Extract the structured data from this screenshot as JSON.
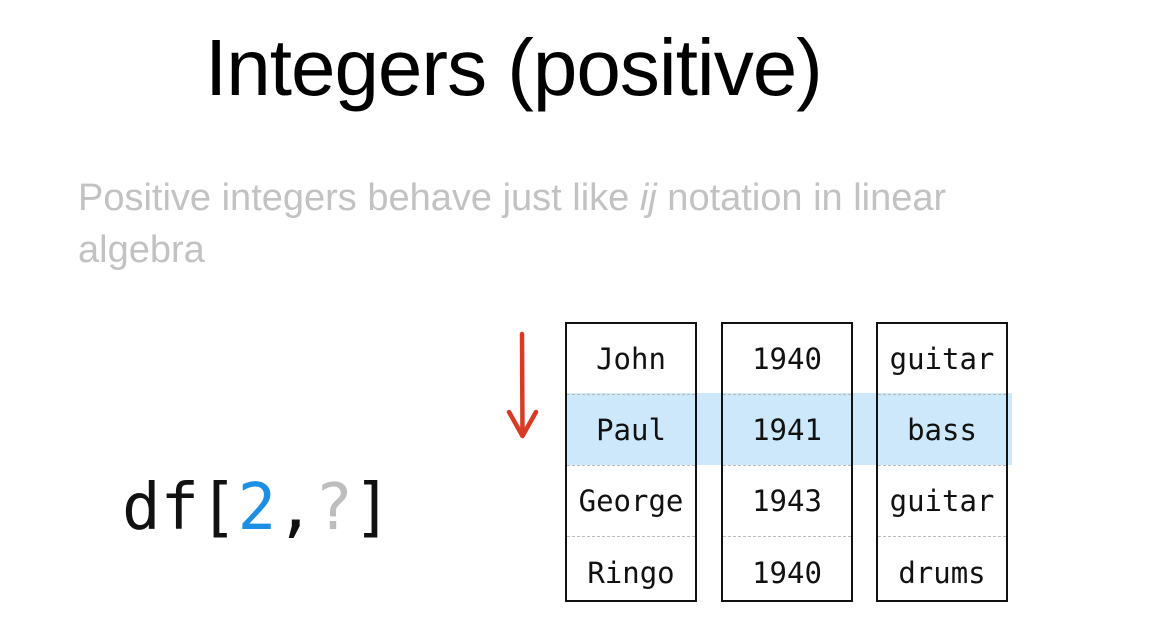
{
  "slide": {
    "title": "Integers (positive)",
    "subtitle_before": "Positive integers behave just like ",
    "subtitle_em": "ij",
    "subtitle_after": " notation in linear algebra"
  },
  "code": {
    "prefix": "df[",
    "index": "2",
    "comma": ",",
    "placeholder": "?",
    "suffix": "]"
  },
  "colors": {
    "index_blue": "#1a8fe3",
    "row_highlight": "#cce8fa",
    "arrow_red": "#d93a23",
    "subtitle_gray": "#c2c2c2"
  },
  "highlighted_row": 2,
  "columns": [
    [
      "John",
      "Paul",
      "George",
      "Ringo"
    ],
    [
      "1940",
      "1941",
      "1943",
      "1940"
    ],
    [
      "guitar",
      "bass",
      "guitar",
      "drums"
    ]
  ]
}
